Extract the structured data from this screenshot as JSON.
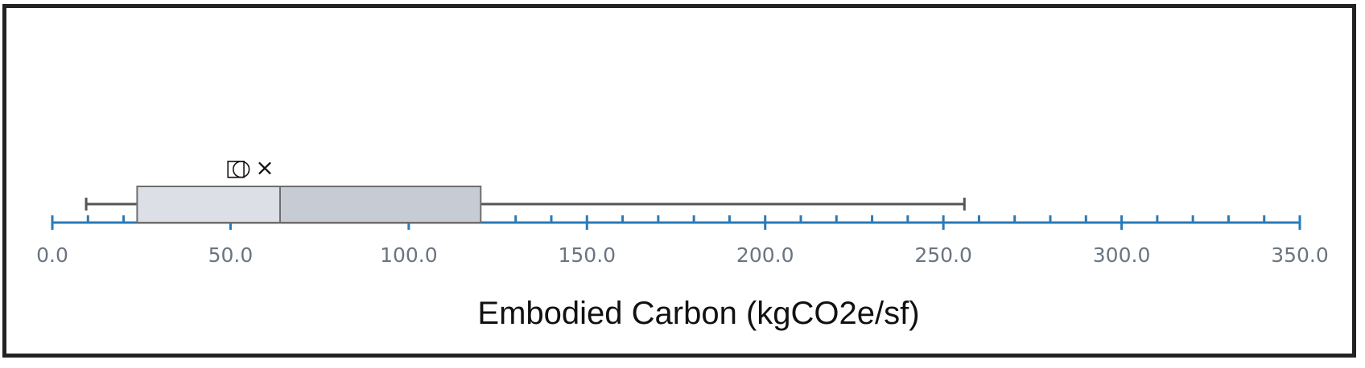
{
  "chart_data": {
    "type": "box",
    "xlabel": "Embodied Carbon (kgCO2e/sf)",
    "xlim": [
      0,
      350
    ],
    "major_ticks": [
      0,
      50,
      100,
      150,
      200,
      250,
      300,
      350
    ],
    "minor_tick_step": 10,
    "tick_labels": [
      "0.0",
      "50.0",
      "100.0",
      "150.0",
      "200.0",
      "250.0",
      "300.0",
      "350.0"
    ],
    "box": {
      "min": 9.5,
      "q1": 23.8,
      "median": 63.9,
      "q3": 120.2,
      "max": 255.9,
      "mean": 59.6
    },
    "markers": [
      {
        "symbol": "□",
        "value": 51.5
      },
      {
        "symbol": "○",
        "value": 53.0
      },
      {
        "symbol": "×",
        "value": 59.6
      }
    ],
    "colors": {
      "axis": "#2a7ab8",
      "box_lower": "#dcdfe6",
      "box_upper": "#c7ccd4",
      "box_stroke": "#6e6e6e",
      "whisker": "#555555",
      "tick_label": "#6b7480"
    }
  }
}
